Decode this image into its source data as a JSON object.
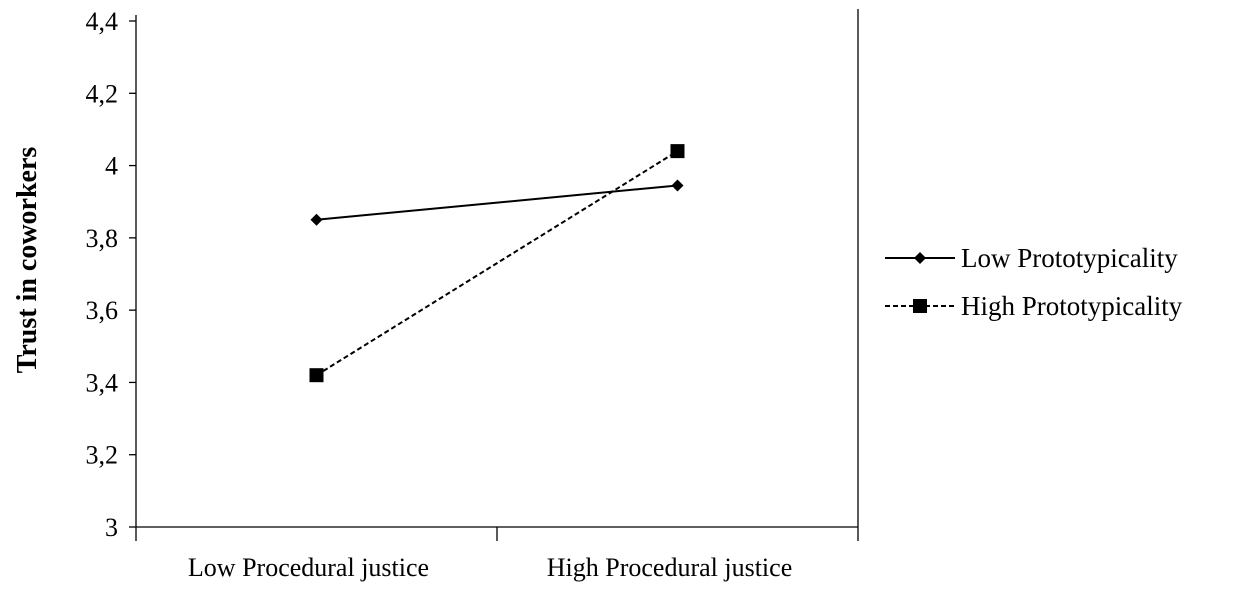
{
  "chart_data": {
    "type": "line",
    "title": "",
    "xlabel": "",
    "ylabel": "Trust in coworkers",
    "categories": [
      "Low Procedural justice",
      "High Procedural justice"
    ],
    "ylim": [
      3,
      4.4
    ],
    "yticks": [
      "3",
      "3,2",
      "3,4",
      "3,6",
      "3,8",
      "4",
      "4,2",
      "4,4"
    ],
    "grid": false,
    "legend_position": "right",
    "series": [
      {
        "name": "Low Prototypicality",
        "values": [
          3.85,
          3.945
        ],
        "line_style": "solid",
        "marker": "diamond",
        "color": "#000000"
      },
      {
        "name": "High Prototypicality",
        "values": [
          3.42,
          4.04
        ],
        "line_style": "dashed",
        "marker": "square",
        "color": "#000000"
      }
    ]
  }
}
